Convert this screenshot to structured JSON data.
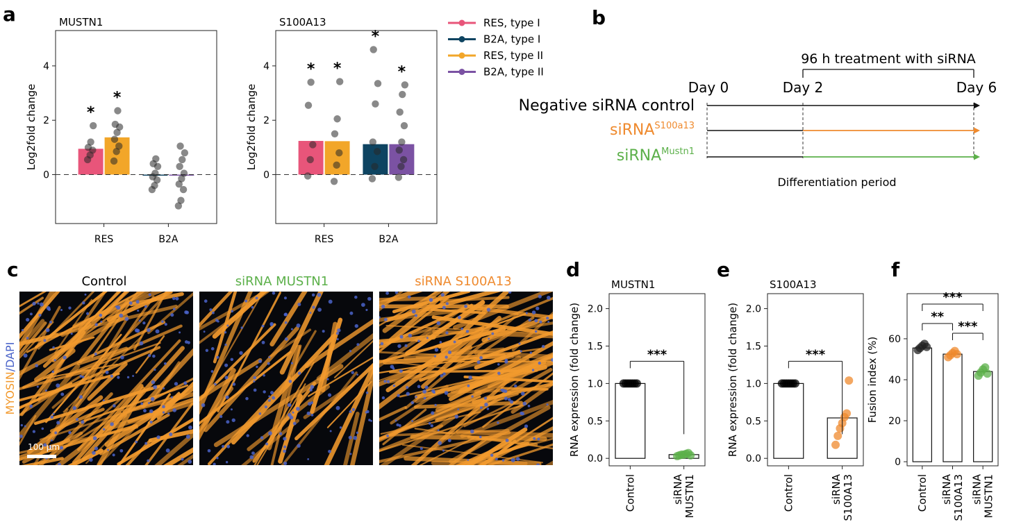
{
  "panel_labels": {
    "a": "a",
    "b": "b",
    "c": "c",
    "d": "d",
    "e": "e",
    "f": "f"
  },
  "colors": {
    "res_type1": "#e8557a",
    "b2a_type1": "#0e4461",
    "res_type2": "#f2a629",
    "b2a_type2": "#7b52a3",
    "green": "#5cb04a",
    "orange": "#ef8a2e",
    "myosin": "#f29a2e",
    "dapi": "#4a63c9"
  },
  "panel_b": {
    "treatment": "96 h treatment with siRNA",
    "day0": "Day 0",
    "day2": "Day 2",
    "day6": "Day 6",
    "negative": "Negative siRNA control",
    "sirna_prefix": "siRNA",
    "s100_sup": "S100a13",
    "mustn_sup": "Mustn1",
    "differentiation": "Differentiation period"
  },
  "panel_c": {
    "titles": [
      "Control",
      "siRNA MUSTN1",
      "siRNA S100A13"
    ],
    "stain_myosin": "MYOSIN",
    "stain_sep": "/",
    "stain_dapi": "DAPI",
    "scale_bar": "100 µm"
  },
  "chart_data": [
    {
      "id": "a1",
      "type": "bar",
      "title": "MUSTN1",
      "ylabel": "Log2fold change",
      "categories": [
        "RES",
        "B2A"
      ],
      "ylim": [
        -1.8,
        5.3
      ],
      "yticks": [
        "0",
        "2",
        "4"
      ],
      "legend": [
        "RES, type I",
        "B2A, type I",
        "RES, type II",
        "B2A, type II"
      ],
      "legend_placement": "right",
      "series": [
        {
          "name": "RES, type I",
          "value": 0.95,
          "stars": "*",
          "points": [
            0.55,
            0.72,
            0.9,
            1.0,
            1.2,
            1.8
          ]
        },
        {
          "name": "RES, type II",
          "value": 1.37,
          "stars": "*",
          "points": [
            0.5,
            0.85,
            1.05,
            1.3,
            1.55,
            1.75,
            1.85,
            2.35
          ]
        },
        {
          "name": "B2A, type I",
          "value": -0.02,
          "stars": "",
          "points": [
            -0.55,
            -0.4,
            -0.2,
            -0.08,
            0.05,
            0.3,
            0.4,
            0.58
          ]
        },
        {
          "name": "B2A, type II",
          "value": -0.02,
          "stars": "",
          "points": [
            -1.15,
            -0.95,
            -0.55,
            -0.35,
            -0.15,
            0.05,
            0.3,
            0.55,
            0.8,
            1.05
          ]
        }
      ]
    },
    {
      "id": "a2",
      "type": "bar",
      "title": "S100A13",
      "ylabel": "Log2fold change",
      "categories": [
        "RES",
        "B2A"
      ],
      "ylim": [
        -1.8,
        5.3
      ],
      "yticks": [
        "0",
        "2",
        "4"
      ],
      "series": [
        {
          "name": "RES, type I",
          "value": 1.24,
          "stars": "*",
          "points": [
            -0.05,
            0.55,
            1.1,
            2.55,
            3.4
          ]
        },
        {
          "name": "RES, type II",
          "value": 1.23,
          "stars": "*",
          "points": [
            -0.25,
            0.35,
            0.8,
            1.5,
            2.05,
            3.42
          ]
        },
        {
          "name": "B2A, type I",
          "value": 1.12,
          "stars": "*",
          "points": [
            -0.15,
            0.3,
            0.85,
            1.2,
            2.6,
            3.35,
            4.6
          ]
        },
        {
          "name": "B2A, type II",
          "value": 1.12,
          "stars": "*",
          "points": [
            -0.1,
            0.3,
            0.55,
            0.9,
            1.2,
            1.8,
            2.3,
            2.95,
            3.3
          ]
        }
      ]
    },
    {
      "id": "d",
      "type": "bar",
      "title": "MUSTN1",
      "ylabel": "RNA expression (fold change)",
      "categories": [
        "Control",
        "siRNA MUSTN1"
      ],
      "ylim": [
        -0.1,
        2.2
      ],
      "yticks": [
        "0.0",
        "0.5",
        "1.0",
        "1.5",
        "2.0"
      ],
      "values": [
        1.0,
        0.05
      ],
      "points": [
        [
          1.0,
          1.0,
          1.0,
          1.0,
          1.0,
          1.0,
          1.0
        ],
        [
          0.03,
          0.04,
          0.05,
          0.05,
          0.06,
          0.07,
          0.04
        ]
      ],
      "significance": "***"
    },
    {
      "id": "e",
      "type": "bar",
      "title": "S100A13",
      "ylabel": "RNA expression (fold change)",
      "categories": [
        "Control",
        "siRNA S100A13"
      ],
      "ylim": [
        -0.1,
        2.2
      ],
      "yticks": [
        "0.0",
        "0.5",
        "1.0",
        "1.5",
        "2.0"
      ],
      "values": [
        1.0,
        0.54
      ],
      "points": [
        [
          1.0,
          1.0,
          1.0,
          1.0,
          1.0,
          1.0,
          1.0
        ],
        [
          0.18,
          0.3,
          0.4,
          0.47,
          0.55,
          0.6,
          1.04
        ]
      ],
      "significance": "***"
    },
    {
      "id": "f",
      "type": "bar",
      "ylabel": "Fusion index (%)",
      "categories": [
        "Control",
        "siRNA S100A13",
        "siRNA MUSTN1"
      ],
      "ylim": [
        -2,
        82
      ],
      "yticks": [
        "0",
        "20",
        "40",
        "60"
      ],
      "values": [
        55.5,
        52.5,
        44
      ],
      "points": [
        [
          54.5,
          55.5,
          56.5,
          57.5,
          56
        ],
        [
          51,
          52,
          53,
          54,
          52.5
        ],
        [
          42,
          43.5,
          45,
          46,
          43
        ]
      ],
      "comparisons": [
        {
          "from": 0,
          "to": 1,
          "label": "**"
        },
        {
          "from": 1,
          "to": 2,
          "label": "***"
        },
        {
          "from": 0,
          "to": 2,
          "label": "***"
        }
      ]
    }
  ]
}
